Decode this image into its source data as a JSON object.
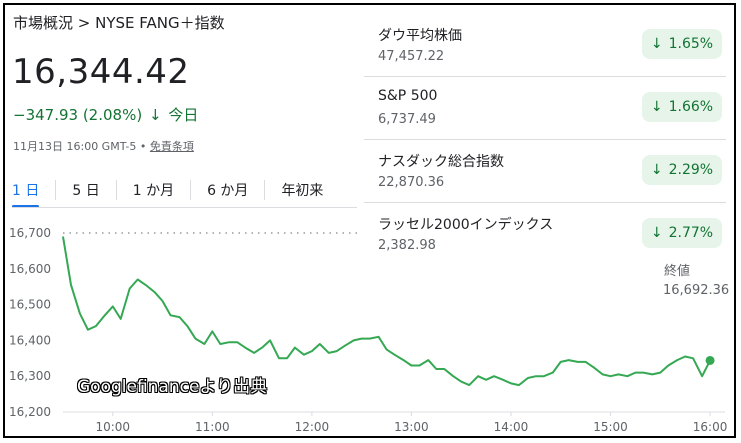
{
  "header": {
    "breadcrumb": "市場概況 > NYSE FANG＋指数",
    "price": "16,344.42",
    "change": "−347.93 (2.08%)",
    "period": "今日",
    "timestamp": "11月13日 16:00 GMT-5 •",
    "disclaimer": "免責条項"
  },
  "tabs": [
    {
      "label": "1 日",
      "active": true
    },
    {
      "label": "5 日",
      "active": false
    },
    {
      "label": "1 か月",
      "active": false
    },
    {
      "label": "6 か月",
      "active": false
    },
    {
      "label": "年初来",
      "active": false
    }
  ],
  "indices": [
    {
      "name": "ダウ平均株価",
      "value": "47,457.22",
      "change": "1.65%",
      "direction": "down"
    },
    {
      "name": "S&P 500",
      "value": "6,737.49",
      "change": "1.66%",
      "direction": "down"
    },
    {
      "name": "ナスダック総合指数",
      "value": "22,870.36",
      "change": "2.29%",
      "direction": "down"
    },
    {
      "name": "ラッセル2000インデックス",
      "value": "2,382.98",
      "change": "2.77%",
      "direction": "down"
    }
  ],
  "close": {
    "label": "終値",
    "value": "16,692.36"
  },
  "watermark": "Googlefinanceより出典",
  "colors": {
    "line": "#34a853",
    "accent": "#1a73e8",
    "down": "#137333",
    "pill_bg": "#e6f4ea"
  },
  "chart_data": {
    "type": "line",
    "ylim": [
      16200,
      16700
    ],
    "yticks": [
      16700,
      16600,
      16500,
      16400,
      16300,
      16200
    ],
    "ytick_labels": [
      "16,700",
      "16,600",
      "16,500",
      "16,400",
      "16,300",
      "16,200"
    ],
    "xlim": [
      9.5,
      16.15
    ],
    "xticks": [
      10,
      11,
      12,
      13,
      14,
      15,
      16
    ],
    "xtick_labels": [
      "10:00",
      "11:00",
      "12:00",
      "13:00",
      "14:00",
      "15:00",
      "16:00"
    ],
    "previous_close": 16692.36,
    "series": [
      {
        "x": [
          9.5,
          9.58,
          9.67,
          9.75,
          9.83,
          9.92,
          10.0,
          10.08,
          10.17,
          10.25,
          10.33,
          10.42,
          10.5,
          10.58,
          10.67,
          10.75,
          10.83,
          10.92,
          11.0,
          11.08,
          11.17,
          11.25,
          11.33,
          11.42,
          11.5,
          11.58,
          11.67,
          11.75,
          11.83,
          11.92,
          12.0,
          12.08,
          12.17,
          12.25,
          12.33,
          12.42,
          12.5,
          12.58,
          12.67,
          12.75,
          12.83,
          12.92,
          13.0,
          13.08,
          13.17,
          13.25,
          13.33,
          13.42,
          13.5,
          13.58,
          13.67,
          13.75,
          13.83,
          13.92,
          14.0,
          14.08,
          14.17,
          14.25,
          14.33,
          14.42,
          14.5,
          14.58,
          14.67,
          14.75,
          14.83,
          14.92,
          15.0,
          15.08,
          15.17,
          15.25,
          15.33,
          15.42,
          15.5,
          15.58,
          15.67,
          15.75,
          15.83,
          15.92,
          16.0
        ],
        "y": [
          16690,
          16555,
          16475,
          16430,
          16440,
          16470,
          16495,
          16460,
          16545,
          16570,
          16555,
          16535,
          16510,
          16470,
          16465,
          16440,
          16405,
          16390,
          16425,
          16390,
          16395,
          16395,
          16380,
          16365,
          16380,
          16400,
          16350,
          16350,
          16380,
          16360,
          16370,
          16390,
          16365,
          16370,
          16385,
          16400,
          16405,
          16405,
          16410,
          16375,
          16360,
          16345,
          16330,
          16330,
          16345,
          16320,
          16320,
          16300,
          16285,
          16275,
          16300,
          16290,
          16300,
          16290,
          16280,
          16275,
          16295,
          16300,
          16300,
          16310,
          16340,
          16345,
          16340,
          16340,
          16325,
          16305,
          16300,
          16305,
          16300,
          16310,
          16310,
          16305,
          16310,
          16330,
          16345,
          16355,
          16350,
          16300,
          16344
        ]
      }
    ]
  }
}
